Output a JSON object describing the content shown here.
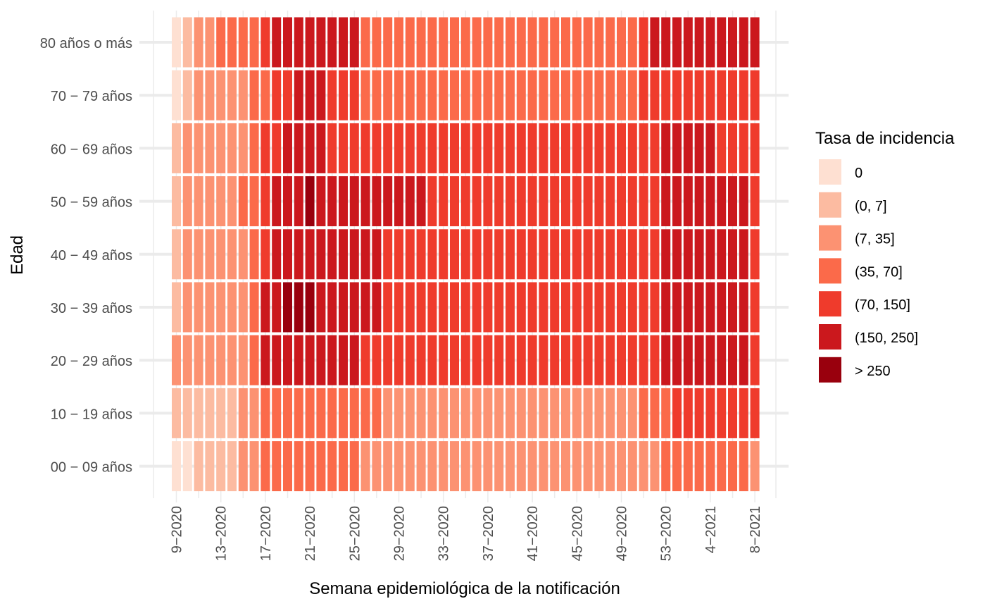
{
  "chart_data": {
    "type": "heatmap",
    "xlabel": "Semana epidemiológica de la notificación",
    "ylabel": "Edad",
    "x_tick_labels": [
      "9−2020",
      "13−2020",
      "17−2020",
      "21−2020",
      "25−2020",
      "29−2020",
      "33−2020",
      "37−2020",
      "41−2020",
      "45−2020",
      "49−2020",
      "53−2020",
      "4−2021",
      "8−2021"
    ],
    "x_tick_every": 4,
    "weeks": [
      "9-2020",
      "10-2020",
      "11-2020",
      "12-2020",
      "13-2020",
      "14-2020",
      "15-2020",
      "16-2020",
      "17-2020",
      "18-2020",
      "19-2020",
      "20-2020",
      "21-2020",
      "22-2020",
      "23-2020",
      "24-2020",
      "25-2020",
      "26-2020",
      "27-2020",
      "28-2020",
      "29-2020",
      "30-2020",
      "31-2020",
      "32-2020",
      "33-2020",
      "34-2020",
      "35-2020",
      "36-2020",
      "37-2020",
      "38-2020",
      "39-2020",
      "40-2020",
      "41-2020",
      "42-2020",
      "43-2020",
      "44-2020",
      "45-2020",
      "46-2020",
      "47-2020",
      "48-2020",
      "49-2020",
      "50-2020",
      "51-2020",
      "52-2020",
      "53-2020",
      "1-2021",
      "2-2021",
      "3-2021",
      "4-2021",
      "5-2021",
      "6-2021",
      "7-2021",
      "8-2021"
    ],
    "age_groups": [
      "80 años o más",
      "70 − 79 años",
      "60 − 69 años",
      "50 − 59 años",
      "40 − 49 años",
      "30 − 39 años",
      "20 − 29 años",
      "10 − 19 años",
      "00 − 09 años"
    ],
    "legend": {
      "title": "Tasa de incidencia",
      "placement": "right",
      "categories": [
        "0",
        "(0, 7]",
        "(7, 35]",
        "(35, 70]",
        "(70, 150]",
        "(150, 250]",
        "> 250"
      ],
      "colors": [
        "#fee0d2",
        "#fcbba1",
        "#fc9272",
        "#fb6a4a",
        "#ef3b2c",
        "#cb181d",
        "#99000d"
      ]
    },
    "grid": true,
    "values": [
      "01223333455555555333333333333333333333333345555555555",
      "01222223344555444333333333333333333333333344444444444",
      "12222223445555444444444444444444444444444444555554444",
      "12222233455565555555555444444444444444444444555555554",
      "12222223455555555554444444444444444444444444555555554",
      "12222223556665555554444444444444444444444444555555554",
      "22222223555555555444444444444444444444444444555555554",
      "11111122333333333332222222222222222222222233344444444",
      "00111122333333333222222222222222222222222222333333332"
    ]
  }
}
